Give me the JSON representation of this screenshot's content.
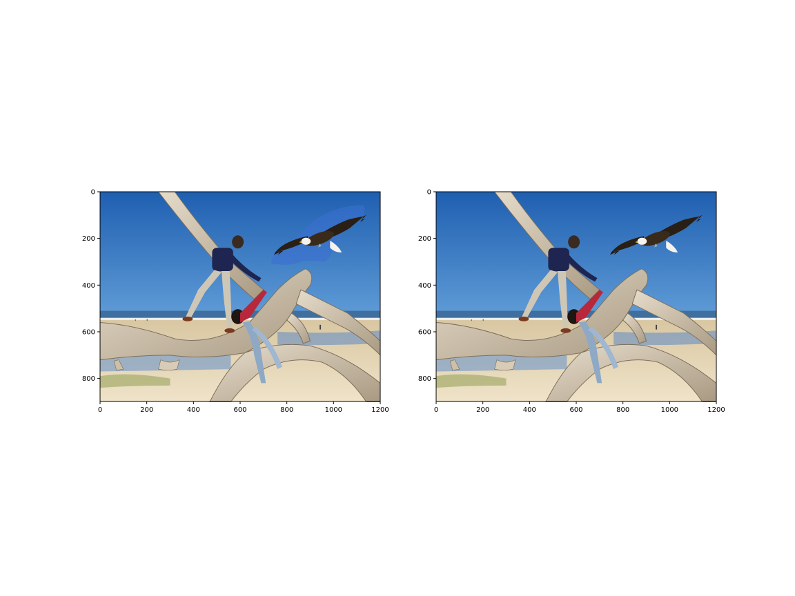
{
  "figure": {
    "panels": [
      {
        "id": "left",
        "variant": "with-blue-halo"
      },
      {
        "id": "right",
        "variant": "clean-composite"
      }
    ]
  },
  "axes": {
    "x_ticks": [
      "0",
      "200",
      "400",
      "600",
      "800",
      "1000",
      "1200"
    ],
    "y_ticks": [
      "0",
      "200",
      "400",
      "600",
      "800"
    ],
    "x_range": [
      0,
      1200
    ],
    "y_range": [
      900,
      0
    ],
    "y_inverted": true
  },
  "scene": {
    "sky_top": "#1f5fb0",
    "sky_bottom": "#aad0ea",
    "ocean": "#3f6f9e",
    "surf": "#e8eef2",
    "sand": "#e8d9b8",
    "wood": "#cdbfa8",
    "halo": "#3a6fd0"
  },
  "icons": [
    "bald-eagle-icon",
    "person-in-navy-shirt-icon",
    "person-in-red-shirt-icon"
  ]
}
